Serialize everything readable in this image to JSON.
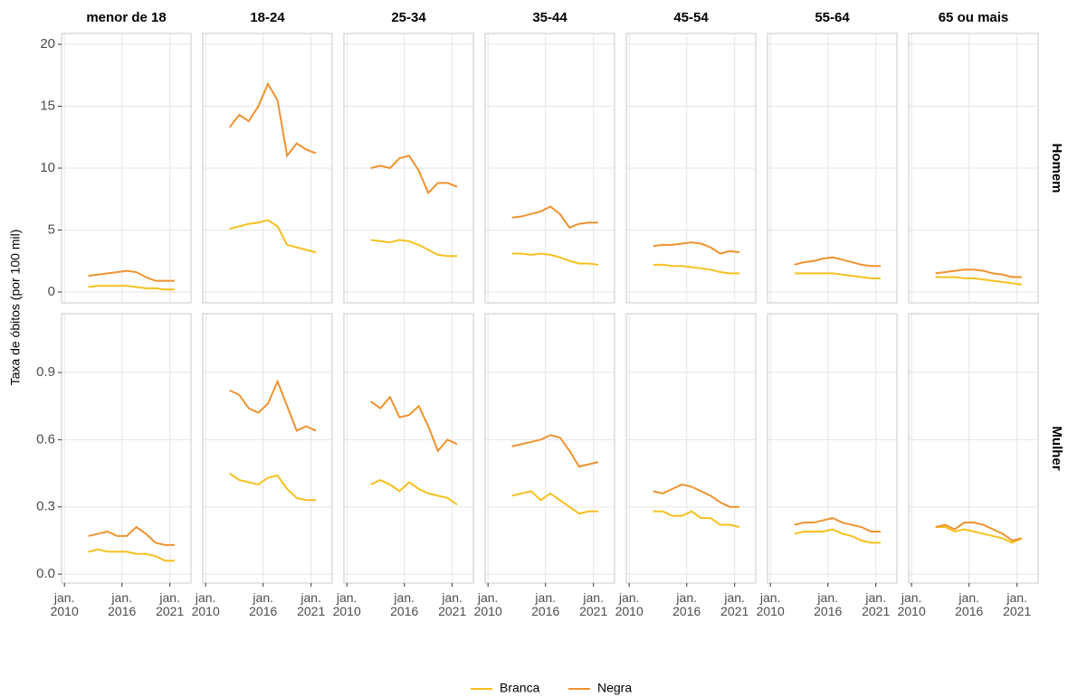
{
  "chart_data": {
    "type": "line",
    "y_label": "Taxa de óbitos (por 100 mil)",
    "grid": true,
    "legend": "bottom",
    "series": [
      {
        "name": "Branca",
        "color": "#f6c01e"
      },
      {
        "name": "Negra",
        "color": "#ef922f"
      }
    ],
    "columns": [
      "menor de 18",
      "18-24",
      "25-34",
      "35-44",
      "45-54",
      "55-64",
      "65 ou mais"
    ],
    "x": [
      2012.5,
      2013.5,
      2014.5,
      2015.5,
      2016.5,
      2017.5,
      2018.5,
      2019.5,
      2020.5,
      2021.5
    ],
    "xlim": [
      2009.7,
      2023.2
    ],
    "xticks": [
      {
        "value": 2010,
        "label": "jan.\n2010"
      },
      {
        "value": 2016,
        "label": "jan.\n2016"
      },
      {
        "value": 2021,
        "label": "jan.\n2021"
      }
    ],
    "rows": [
      {
        "label": "Homem",
        "ylim": [
          -0.88,
          20.88
        ],
        "yticks": [
          0,
          5,
          10,
          15,
          20
        ],
        "values": [
          [
            [
              0.4,
              0.5,
              0.5,
              0.5,
              0.5,
              0.4,
              0.3,
              0.3,
              0.2,
              0.2
            ],
            [
              1.3,
              1.4,
              1.5,
              1.6,
              1.7,
              1.6,
              1.2,
              0.9,
              0.9,
              0.9
            ]
          ],
          [
            [
              5.1,
              5.3,
              5.5,
              5.6,
              5.8,
              5.3,
              3.8,
              3.6,
              3.4,
              3.2
            ],
            [
              13.3,
              14.3,
              13.8,
              15.0,
              16.8,
              15.5,
              11.0,
              12.0,
              11.5,
              11.2
            ]
          ],
          [
            [
              4.2,
              4.1,
              4.0,
              4.2,
              4.1,
              3.8,
              3.4,
              3.0,
              2.9,
              2.9
            ],
            [
              10.0,
              10.2,
              10.0,
              10.8,
              11.0,
              9.8,
              8.0,
              8.8,
              8.8,
              8.5
            ]
          ],
          [
            [
              3.1,
              3.1,
              3.0,
              3.1,
              3.0,
              2.8,
              2.5,
              2.3,
              2.3,
              2.2
            ],
            [
              6.0,
              6.1,
              6.3,
              6.5,
              6.9,
              6.3,
              5.2,
              5.5,
              5.6,
              5.6
            ]
          ],
          [
            [
              2.2,
              2.2,
              2.1,
              2.1,
              2.0,
              1.9,
              1.8,
              1.6,
              1.5,
              1.5
            ],
            [
              3.7,
              3.8,
              3.8,
              3.9,
              4.0,
              3.9,
              3.6,
              3.1,
              3.3,
              3.2
            ]
          ],
          [
            [
              1.5,
              1.5,
              1.5,
              1.5,
              1.5,
              1.4,
              1.3,
              1.2,
              1.1,
              1.1
            ],
            [
              2.2,
              2.4,
              2.5,
              2.7,
              2.8,
              2.6,
              2.4,
              2.2,
              2.1,
              2.1
            ]
          ],
          [
            [
              1.2,
              1.2,
              1.2,
              1.1,
              1.1,
              1.0,
              0.9,
              0.8,
              0.7,
              0.6
            ],
            [
              1.5,
              1.6,
              1.7,
              1.8,
              1.8,
              1.7,
              1.5,
              1.4,
              1.2,
              1.2
            ]
          ]
        ]
      },
      {
        "label": "Mulher",
        "ylim": [
          -0.04,
          1.162
        ],
        "yticks": [
          {
            "value": 0,
            "label": "0.0"
          },
          0.3,
          0.6,
          0.9
        ],
        "values": [
          [
            [
              0.1,
              0.11,
              0.1,
              0.1,
              0.1,
              0.09,
              0.09,
              0.08,
              0.06,
              0.06
            ],
            [
              0.17,
              0.18,
              0.19,
              0.17,
              0.17,
              0.21,
              0.18,
              0.14,
              0.13,
              0.13
            ]
          ],
          [
            [
              0.45,
              0.42,
              0.41,
              0.4,
              0.43,
              0.44,
              0.38,
              0.34,
              0.33,
              0.33
            ],
            [
              0.82,
              0.8,
              0.74,
              0.72,
              0.76,
              0.86,
              0.75,
              0.64,
              0.66,
              0.64
            ]
          ],
          [
            [
              0.4,
              0.42,
              0.4,
              0.37,
              0.41,
              0.38,
              0.36,
              0.35,
              0.34,
              0.31
            ],
            [
              0.77,
              0.74,
              0.79,
              0.7,
              0.71,
              0.75,
              0.66,
              0.55,
              0.6,
              0.58
            ]
          ],
          [
            [
              0.35,
              0.36,
              0.37,
              0.33,
              0.36,
              0.33,
              0.3,
              0.27,
              0.28,
              0.28
            ],
            [
              0.57,
              0.58,
              0.59,
              0.6,
              0.62,
              0.61,
              0.55,
              0.48,
              0.49,
              0.5
            ]
          ],
          [
            [
              0.28,
              0.28,
              0.26,
              0.26,
              0.28,
              0.25,
              0.25,
              0.22,
              0.22,
              0.21
            ],
            [
              0.37,
              0.36,
              0.38,
              0.4,
              0.39,
              0.37,
              0.35,
              0.32,
              0.3,
              0.3
            ]
          ],
          [
            [
              0.18,
              0.19,
              0.19,
              0.19,
              0.2,
              0.18,
              0.17,
              0.15,
              0.14,
              0.14
            ],
            [
              0.22,
              0.23,
              0.23,
              0.24,
              0.25,
              0.23,
              0.22,
              0.21,
              0.19,
              0.19
            ]
          ],
          [
            [
              0.21,
              0.21,
              0.19,
              0.2,
              0.19,
              0.18,
              0.17,
              0.16,
              0.14,
              0.16
            ],
            [
              0.21,
              0.22,
              0.2,
              0.23,
              0.23,
              0.22,
              0.2,
              0.18,
              0.15,
              0.16
            ]
          ]
        ]
      }
    ]
  }
}
